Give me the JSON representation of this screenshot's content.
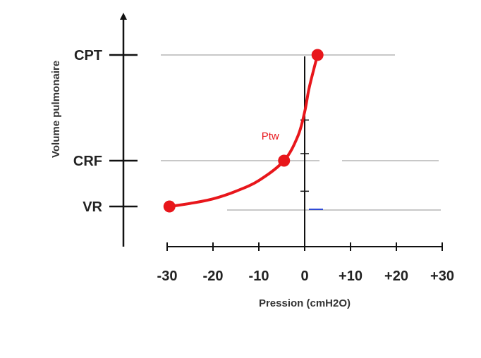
{
  "chart_data": {
    "type": "line",
    "xlabel": "Pression (cmH2O)",
    "ylabel": "Volume pulmonaire",
    "x_ticks": [
      "-30",
      "-20",
      "-10",
      "0",
      "+10",
      "+20",
      "+30"
    ],
    "x_tick_values": [
      -30,
      -20,
      -10,
      0,
      10,
      20,
      30
    ],
    "xlim": [
      -30,
      30
    ],
    "y_levels": [
      {
        "label": "CPT",
        "value": 100
      },
      {
        "label": "CRF",
        "value": 35
      },
      {
        "label": "VR",
        "value": 5
      }
    ],
    "series": [
      {
        "points": [
          {
            "x": -29.5,
            "y": 5
          },
          {
            "x": -25,
            "y": 7
          },
          {
            "x": -20,
            "y": 10
          },
          {
            "x": -15,
            "y": 15
          },
          {
            "x": -10,
            "y": 22
          },
          {
            "x": -4.5,
            "y": 35
          },
          {
            "x": -1.5,
            "y": 50
          },
          {
            "x": 0,
            "y": 65
          },
          {
            "x": 1,
            "y": 80
          },
          {
            "x": 2.8,
            "y": 100
          }
        ],
        "color": "#e8161b",
        "markers": [
          {
            "x": -29.5,
            "y": 5
          },
          {
            "x": -4.5,
            "y": 35
          },
          {
            "x": 2.8,
            "y": 100
          }
        ]
      }
    ],
    "annotation": {
      "text": "Ptw",
      "x": -7.5,
      "y": 48
    },
    "colors": {
      "curve": "#e8161b",
      "axis": "#111111",
      "reference_lines": "#c8c8c8",
      "accent_mark": "#2f4bd6"
    }
  }
}
